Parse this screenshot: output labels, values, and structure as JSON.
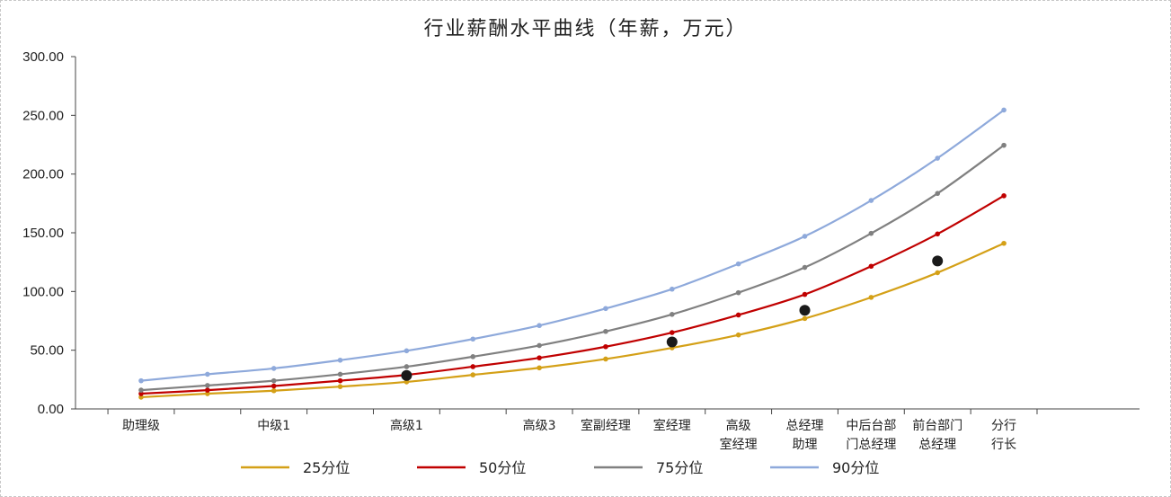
{
  "chart_data": {
    "type": "line",
    "title": "行业薪酬水平曲线（年薪，万元）",
    "xlabel": "",
    "ylabel": "",
    "ylim": [
      0,
      300
    ],
    "yticks": [
      "0.00",
      "50.00",
      "100.00",
      "150.00",
      "200.00",
      "250.00",
      "300.00"
    ],
    "categories": [
      "助理级",
      "",
      "中级1",
      "",
      "高级1",
      "",
      "高级3",
      "室副经理",
      "室经理",
      "高级\n室经理",
      "总经理\n助理",
      "中后台部\n门总经理",
      "前台部门\n总经理",
      "分行\n行长"
    ],
    "series": [
      {
        "name": "25分位",
        "color": "#D4A017",
        "values": [
          10,
          13,
          15.5,
          19,
          23,
          29,
          35,
          42.5,
          52,
          63,
          77,
          95,
          116,
          141
        ]
      },
      {
        "name": "50分位",
        "color": "#C00000",
        "values": [
          13,
          16,
          19.5,
          24,
          29,
          36,
          43.5,
          53,
          65,
          80,
          97.5,
          121.5,
          149,
          181.5
        ]
      },
      {
        "name": "75分位",
        "color": "#808080",
        "values": [
          16,
          20,
          24,
          29.5,
          36,
          44.5,
          54,
          66,
          80.5,
          99,
          120.5,
          149.5,
          183.5,
          224.5
        ]
      },
      {
        "name": "90分位",
        "color": "#8EA9DB",
        "values": [
          24,
          29.5,
          34.5,
          41.5,
          49.5,
          59.5,
          71,
          85.5,
          102,
          123.5,
          147,
          177.5,
          213.5,
          254.5
        ]
      }
    ],
    "markers": {
      "name": "",
      "color": "#1a1a1a",
      "points": [
        {
          "category_index": 4,
          "value": 28.5
        },
        {
          "category_index": 8,
          "value": 57
        },
        {
          "category_index": 10,
          "value": 84
        },
        {
          "category_index": 12,
          "value": 126
        }
      ]
    },
    "legend_position": "bottom"
  }
}
